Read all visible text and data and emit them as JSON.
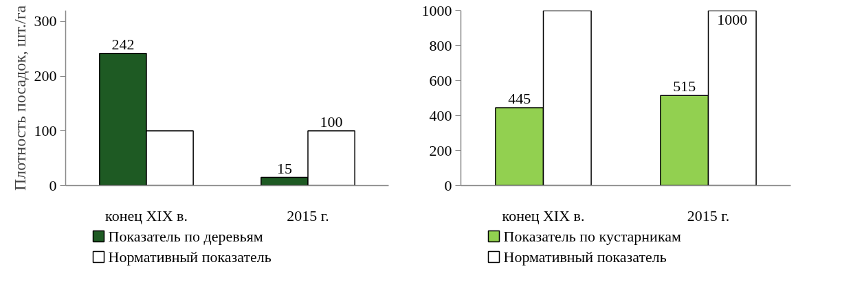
{
  "chart_data": [
    {
      "type": "bar",
      "ylabel": "Плотность посадок, шт./га",
      "categories": [
        "конец XIX в.",
        "2015 г."
      ],
      "ylim": [
        0,
        320
      ],
      "yticks": [
        0,
        100,
        200,
        300
      ],
      "grid": false,
      "legend": "bottom",
      "series": [
        {
          "name": "Показатель по деревьям",
          "color": "#1e5a23",
          "values": [
            242,
            15
          ],
          "value_labels": [
            "242",
            "15"
          ]
        },
        {
          "name": "Нормативный показатель",
          "color": "#ffffff",
          "values": [
            100,
            100
          ],
          "value_labels": [
            null,
            "100"
          ]
        }
      ]
    },
    {
      "type": "bar",
      "categories": [
        "конец XIX в.",
        "2015 г."
      ],
      "ylim": [
        0,
        1000
      ],
      "yticks": [
        0,
        200,
        400,
        600,
        800,
        1000
      ],
      "grid": false,
      "legend": "bottom",
      "series": [
        {
          "name": "Показатель по кустарникам",
          "color": "#92d050",
          "values": [
            445,
            515
          ],
          "value_labels": [
            "445",
            "515"
          ]
        },
        {
          "name": "Нормативный показатель",
          "color": "#ffffff",
          "values": [
            1000,
            1000
          ],
          "value_labels": [
            null,
            "1000"
          ]
        }
      ]
    }
  ]
}
